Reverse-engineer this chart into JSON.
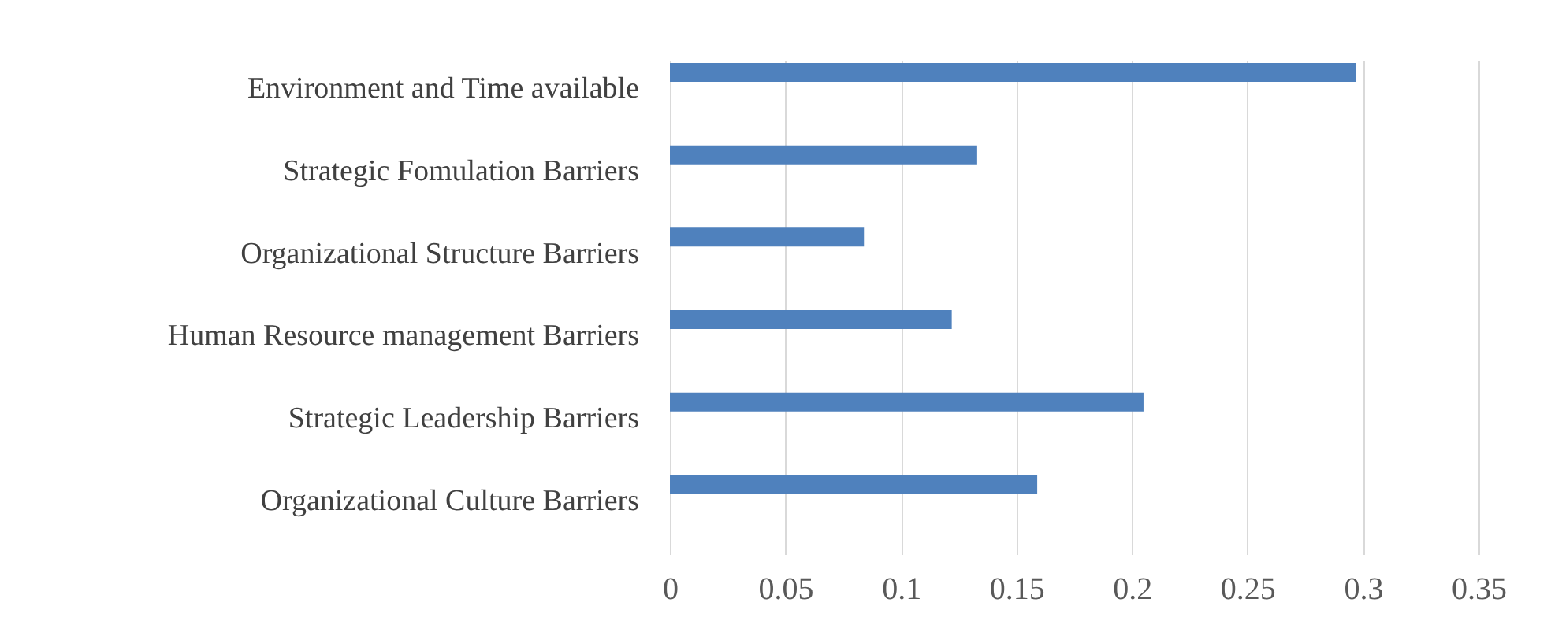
{
  "chart_data": {
    "type": "bar",
    "orientation": "horizontal",
    "categories": [
      "Environment and Time available",
      "Strategic Fomulation Barriers",
      "Organizational Structure Barriers",
      "Human Resource management Barriers",
      "Strategic Leadership Barriers",
      "Organizational Culture Barriers"
    ],
    "values": [
      0.297,
      0.133,
      0.084,
      0.122,
      0.205,
      0.159
    ],
    "color": "#4f81bd",
    "xlim": [
      0,
      0.35
    ],
    "xticks": [
      0,
      0.05,
      0.1,
      0.15,
      0.2,
      0.25,
      0.3,
      0.35
    ],
    "grid": "x"
  }
}
